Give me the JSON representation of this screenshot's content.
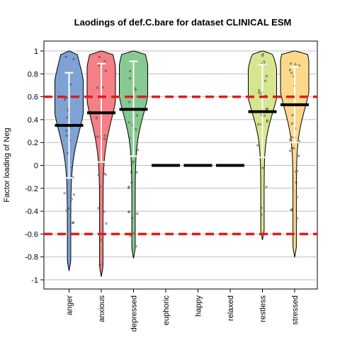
{
  "chart_data": {
    "type": "violin",
    "title": "Laodings of def.C.bare for dataset CLINICAL ESM",
    "ylabel": "Factor loading of Neg",
    "xlabel": "",
    "ylim": [
      -1,
      1
    ],
    "yticks": [
      "-1",
      "-0.8",
      "-0.6",
      "-0.4",
      "-0.2",
      "0",
      "0.2",
      "0.4",
      "0.6",
      "0.8",
      "1"
    ],
    "grid": true,
    "reference_lines": [
      0.6,
      -0.6
    ],
    "reference_line_color": "#e31a1c",
    "categories": [
      "anger",
      "anxious",
      "depressed",
      "euphoric",
      "happy",
      "relaxed",
      "restless",
      "stressed"
    ],
    "means": [
      0.35,
      0.46,
      0.49,
      0.0,
      0.0,
      0.0,
      0.47,
      0.53
    ],
    "sd_low": [
      -0.11,
      0.03,
      0.08,
      null,
      null,
      null,
      0.07,
      0.2
    ],
    "sd_high": [
      0.81,
      0.89,
      0.91,
      null,
      null,
      null,
      0.88,
      0.86
    ],
    "range_min": [
      -0.92,
      -0.97,
      -0.81,
      0.0,
      0.0,
      0.0,
      -0.65,
      -0.8
    ],
    "range_max": [
      1.0,
      1.0,
      1.0,
      0.0,
      0.0,
      0.0,
      1.0,
      1.0
    ],
    "colors": [
      "#7fa2d4",
      "#f47f86",
      "#87c993",
      null,
      null,
      null,
      "#d5e68e",
      "#fbd98a"
    ]
  }
}
